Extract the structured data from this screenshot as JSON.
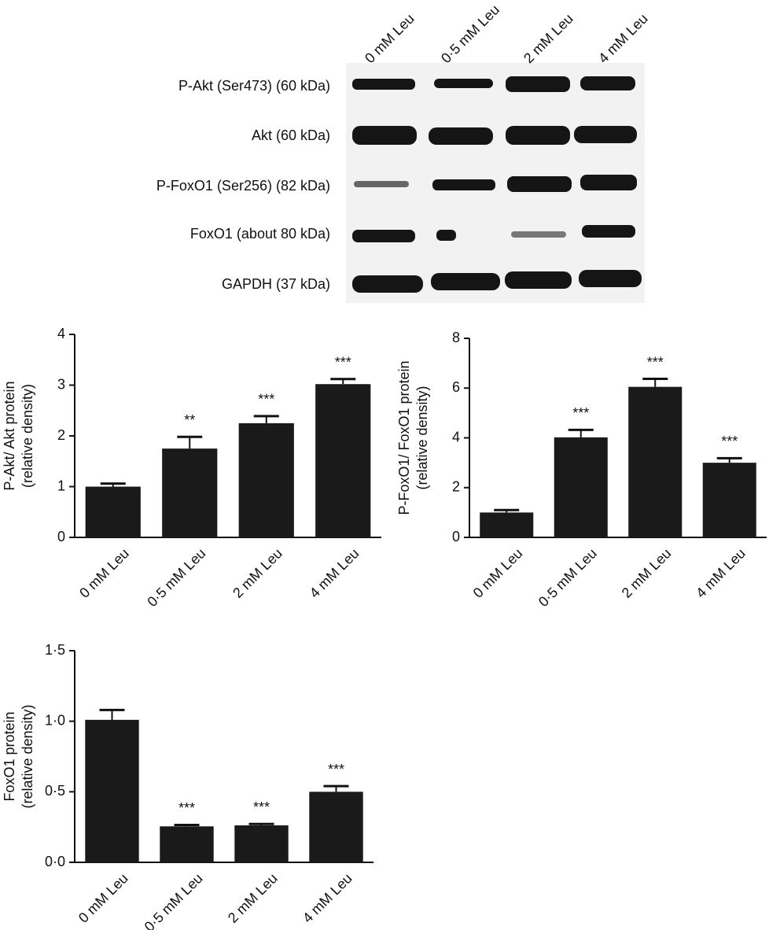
{
  "blot": {
    "lanes": [
      "0 mM Leu",
      "0·5 mM Leu",
      "2 mM Leu",
      "4 mM Leu"
    ],
    "rows": [
      "P-Akt (Ser473) (60 kDa)",
      "Akt (60 kDa)",
      "P-FoxO1 (Ser256) (82 kDa)",
      "FoxO1 (about 80 kDa)",
      "GAPDH (37 kDa)"
    ]
  },
  "chart_data": [
    {
      "type": "bar",
      "ylabel": [
        "P-Akt/ Akt protein",
        "(relative density)"
      ],
      "categories": [
        "0 mM Leu",
        "0·5 mM Leu",
        "2 mM Leu",
        "4 mM Leu"
      ],
      "values": [
        1.0,
        1.75,
        2.25,
        3.02
      ],
      "errors": [
        0.06,
        0.23,
        0.14,
        0.1
      ],
      "annotations": [
        null,
        "**",
        "***",
        "***"
      ],
      "color": "#1a1a1a",
      "ylim": [
        0,
        4
      ],
      "yticks": [
        0,
        1,
        2,
        3,
        4
      ]
    },
    {
      "type": "bar",
      "ylabel": [
        "P-FoxO1/ FoxO1 protein",
        "(relative density)"
      ],
      "categories": [
        "0 mM Leu",
        "0·5 mM Leu",
        "2 mM Leu",
        "4 mM Leu"
      ],
      "values": [
        1.0,
        4.02,
        6.05,
        3.0
      ],
      "errors": [
        0.1,
        0.3,
        0.32,
        0.18
      ],
      "annotations": [
        null,
        "***",
        "***",
        "***"
      ],
      "color": "#1a1a1a",
      "ylim": [
        0,
        8
      ],
      "yticks": [
        0,
        2,
        4,
        6,
        8
      ]
    },
    {
      "type": "bar",
      "ylabel": [
        "FoxO1 protein",
        "(relative density)"
      ],
      "categories": [
        "0 mM Leu",
        "0·5 mM Leu",
        "2 mM Leu",
        "4 mM Leu"
      ],
      "values": [
        1.01,
        0.255,
        0.262,
        0.5
      ],
      "errors": [
        0.07,
        0.01,
        0.01,
        0.04
      ],
      "annotations": [
        null,
        "***",
        "***",
        "***"
      ],
      "color": "#1a1a1a",
      "ylim": [
        0,
        1.5
      ],
      "yticks": [
        {
          "value": 0,
          "label": "0·0"
        },
        {
          "value": 0.5,
          "label": "0·5"
        },
        {
          "value": 1,
          "label": "1·0"
        },
        {
          "value": 1.5,
          "label": "1·5"
        }
      ]
    }
  ]
}
